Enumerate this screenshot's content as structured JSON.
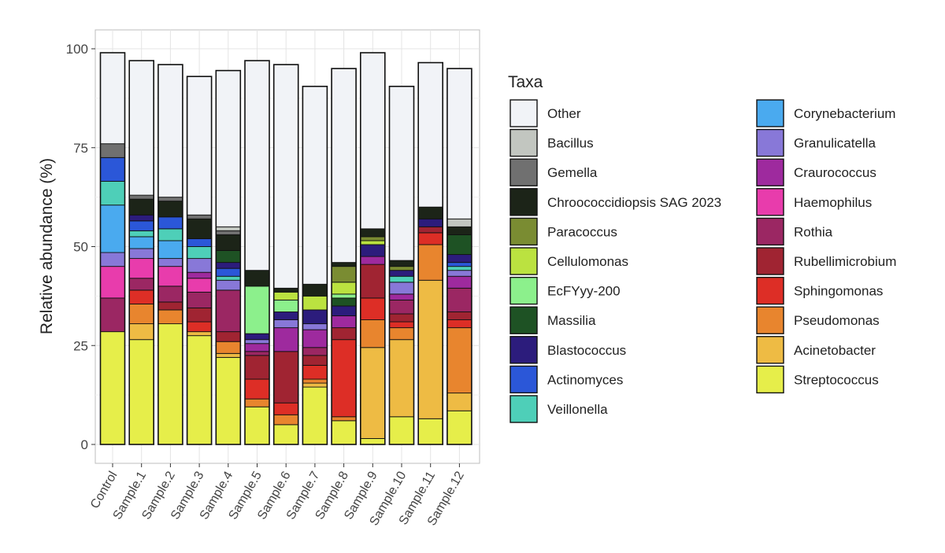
{
  "chart_data": {
    "type": "bar",
    "stacked": true,
    "ylabel": "Relative abundance (%)",
    "ylim": [
      0,
      100
    ],
    "yticks": [
      "0",
      "25",
      "50",
      "75",
      "100"
    ],
    "grid": true,
    "legend": {
      "title": "Taxa",
      "placement": "right"
    },
    "categories": [
      "Control",
      "Sample.1",
      "Sample.2",
      "Sample.3",
      "Sample.4",
      "Sample.5",
      "Sample.6",
      "Sample.7",
      "Sample.8",
      "Sample.9",
      "Sample.10",
      "Sample.11",
      "Sample.12"
    ],
    "series": [
      {
        "name": "Streptococcus",
        "color": "#e6ee4a",
        "values": [
          28.5,
          26.5,
          30.5,
          27.5,
          22,
          9.5,
          5,
          14.5,
          6,
          1.5,
          7,
          6.5,
          8.5
        ]
      },
      {
        "name": "Acinetobacter",
        "color": "#eebb44",
        "values": [
          0,
          4,
          0,
          1,
          1,
          0,
          0,
          1,
          0,
          23,
          19.5,
          35,
          4.5
        ]
      },
      {
        "name": "Pseudomonas",
        "color": "#e8852e",
        "values": [
          0,
          5,
          3.5,
          0,
          3,
          2,
          2.5,
          1,
          1,
          7,
          3,
          9,
          16.5
        ]
      },
      {
        "name": "Sphingomonas",
        "color": "#dd2e26",
        "values": [
          0,
          3.5,
          0,
          2.5,
          0,
          5,
          3,
          3.5,
          19.5,
          5.5,
          1.5,
          3,
          2
        ]
      },
      {
        "name": "Rubellimicrobium",
        "color": "#a02432",
        "values": [
          0,
          0,
          2,
          3.5,
          2.5,
          6,
          13,
          2.5,
          3,
          8.5,
          2,
          1.5,
          2
        ]
      },
      {
        "name": "Rothia",
        "color": "#9b2763",
        "values": [
          8.5,
          3,
          4,
          4,
          10.5,
          1,
          0,
          2,
          0,
          0,
          3.5,
          0,
          6
        ]
      },
      {
        "name": "Haemophilus",
        "color": "#e83cac",
        "values": [
          8,
          5,
          5,
          3.5,
          0,
          0,
          0,
          0,
          0,
          0,
          0,
          0,
          0
        ]
      },
      {
        "name": "Craurococcus",
        "color": "#9e2a9e",
        "values": [
          0,
          0,
          0,
          1.5,
          0,
          2,
          6,
          4.5,
          3,
          2,
          1.5,
          0,
          3
        ]
      },
      {
        "name": "Granulicatella",
        "color": "#8878d8",
        "values": [
          3.5,
          2.5,
          2,
          3.5,
          2.5,
          1,
          2,
          1.5,
          0,
          0,
          3,
          0,
          1.5
        ]
      },
      {
        "name": "Corynebacterium",
        "color": "#4aaaef",
        "values": [
          12,
          3,
          4.5,
          0,
          0,
          0,
          0,
          0,
          0,
          0,
          0,
          0,
          0
        ]
      },
      {
        "name": "Veillonella",
        "color": "#4ecfb8",
        "values": [
          6,
          1.5,
          3,
          3,
          1,
          0,
          0,
          0,
          0,
          0,
          1.5,
          0,
          1
        ]
      },
      {
        "name": "Actinomyces",
        "color": "#2b57d8",
        "values": [
          6,
          2.5,
          3,
          2,
          2,
          0,
          0,
          0,
          0,
          0,
          0,
          0,
          1
        ]
      },
      {
        "name": "Blastococcus",
        "color": "#2c1c7c",
        "values": [
          0,
          1.5,
          0,
          0,
          1.5,
          1.5,
          2,
          3.5,
          2.5,
          3,
          1.5,
          2,
          2
        ]
      },
      {
        "name": "Massilia",
        "color": "#1e5224",
        "values": [
          0,
          0,
          0,
          0,
          3,
          0,
          0,
          0,
          2,
          0,
          0,
          0,
          5
        ]
      },
      {
        "name": "EcFYyy-200",
        "color": "#8cf08c",
        "values": [
          0,
          0,
          0,
          0,
          0,
          12,
          3,
          0,
          1,
          0,
          0,
          0,
          0
        ]
      },
      {
        "name": "Cellulomonas",
        "color": "#bbe240",
        "values": [
          0,
          0,
          0,
          0,
          0,
          0,
          2,
          3.5,
          3,
          1,
          0,
          0,
          0
        ]
      },
      {
        "name": "Paracoccus",
        "color": "#7a8c32",
        "values": [
          0,
          0,
          0,
          0,
          0,
          0,
          0,
          0,
          4,
          1,
          1,
          0,
          0
        ]
      },
      {
        "name": "Chroococcidiopsis SAG 2023",
        "color": "#1c2418",
        "values": [
          0,
          4,
          4,
          5,
          4,
          4,
          1,
          3,
          1,
          2,
          1.5,
          3,
          2
        ]
      },
      {
        "name": "Gemella",
        "color": "#707070",
        "values": [
          3.5,
          1,
          1,
          1,
          1,
          0,
          0,
          0,
          0,
          0,
          0,
          0,
          0
        ]
      },
      {
        "name": "Bacillus",
        "color": "#c2c6c0",
        "values": [
          0,
          0,
          0,
          0,
          1,
          0,
          0,
          0,
          0,
          0,
          0,
          0,
          2
        ]
      },
      {
        "name": "Other",
        "color": "#f1f3f7",
        "values": [
          23,
          34,
          33.5,
          35,
          39.5,
          53,
          56.5,
          50,
          49,
          44.5,
          44,
          36.5,
          38
        ]
      }
    ],
    "legend_columns": [
      [
        "Other",
        "Bacillus",
        "Gemella",
        "Chroococcidiopsis SAG 2023",
        "Paracoccus",
        "Cellulomonas",
        "EcFYyy-200",
        "Massilia",
        "Blastococcus",
        "Actinomyces",
        "Veillonella"
      ],
      [
        "Corynebacterium",
        "Granulicatella",
        "Craurococcus",
        "Haemophilus",
        "Rothia",
        "Rubellimicrobium",
        "Sphingomonas",
        "Pseudomonas",
        "Acinetobacter",
        "Streptococcus"
      ]
    ]
  }
}
